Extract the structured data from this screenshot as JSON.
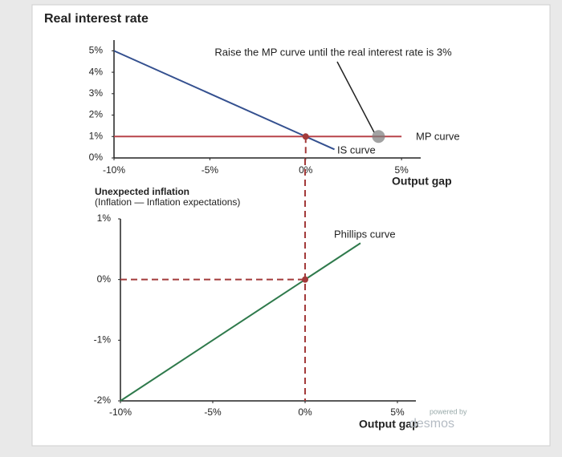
{
  "chart_data": [
    {
      "type": "line",
      "title": "Real interest rate",
      "x_label": "Output gap",
      "annotation": "Raise the MP curve until the real interest rate is 3%",
      "xlim": [
        -10,
        6
      ],
      "ylim": [
        0,
        5.5
      ],
      "xticks": [
        {
          "value": -10,
          "label": "-10%"
        },
        {
          "value": -5,
          "label": "-5%"
        },
        {
          "value": 0,
          "label": "0%"
        },
        {
          "value": 5,
          "label": "5%"
        }
      ],
      "yticks": [
        {
          "value": 0,
          "label": "0%"
        },
        {
          "value": 1,
          "label": "1%"
        },
        {
          "value": 2,
          "label": "2%"
        },
        {
          "value": 3,
          "label": "3%"
        },
        {
          "value": 4,
          "label": "4%"
        },
        {
          "value": 5,
          "label": "5%"
        }
      ],
      "series": [
        {
          "name": "IS curve",
          "color": "#34508f",
          "x": [
            -10,
            0,
            1.5
          ],
          "values": [
            5,
            1,
            0.4
          ]
        },
        {
          "name": "MP curve",
          "color": "#b8434a",
          "x": [
            -10,
            5
          ],
          "values": [
            1,
            1
          ]
        }
      ],
      "points": [
        {
          "x": 0,
          "y": 1,
          "color": "#a33a3a"
        },
        {
          "x": 3.8,
          "y": 1,
          "color": "#7a7a7a"
        }
      ],
      "guide": {
        "x": 0,
        "y": 1
      }
    },
    {
      "type": "line",
      "y_label": [
        "Unexpected inflation",
        "(Inflation — Inflation expectations)"
      ],
      "x_label": "Output gap",
      "watermark": [
        "powered by",
        "desmos"
      ],
      "xlim": [
        -10,
        6
      ],
      "ylim": [
        -2,
        1
      ],
      "xticks": [
        {
          "value": -10,
          "label": "-10%"
        },
        {
          "value": -5,
          "label": "-5%"
        },
        {
          "value": 0,
          "label": "0%"
        },
        {
          "value": 5,
          "label": "5%"
        }
      ],
      "yticks": [
        {
          "value": -2,
          "label": "-2%"
        },
        {
          "value": -1,
          "label": "-1%"
        },
        {
          "value": 0,
          "label": "0%"
        },
        {
          "value": 1,
          "label": "1%"
        }
      ],
      "series": [
        {
          "name": "Phillips curve",
          "color": "#2f7a4c",
          "x": [
            -10,
            0,
            3
          ],
          "values": [
            -2,
            0,
            0.6
          ]
        }
      ],
      "points": [
        {
          "x": 0,
          "y": 0,
          "color": "#a33a3a"
        }
      ],
      "guide": {
        "x": 0,
        "y": 0
      }
    }
  ]
}
